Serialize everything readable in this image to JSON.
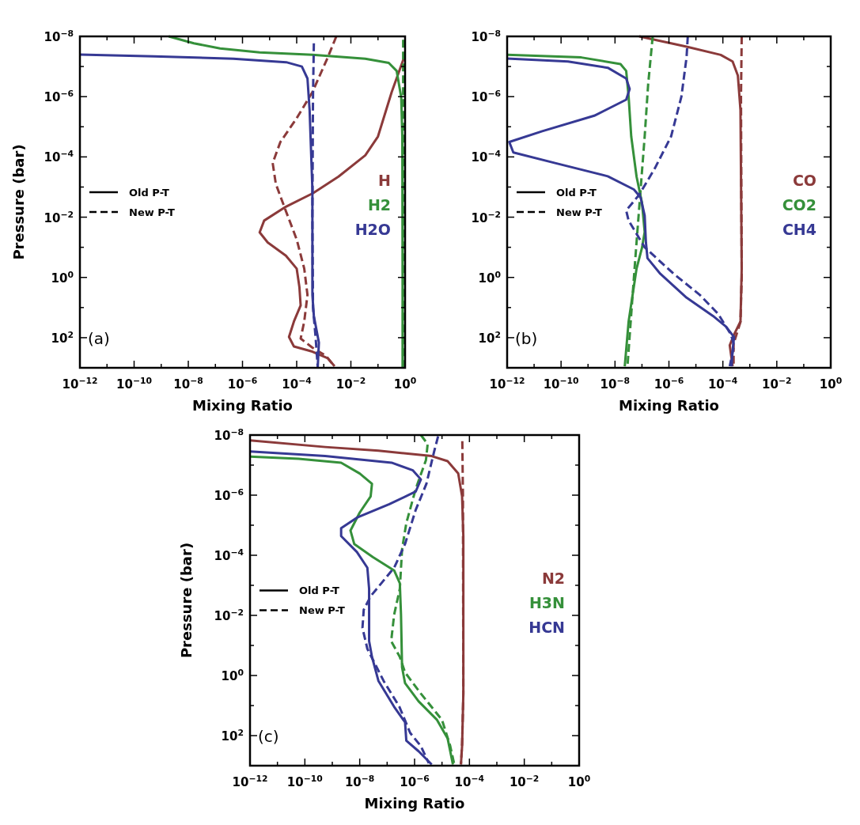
{
  "chart_data": [
    {
      "type": "line",
      "xlabel": "Mixing Ratio",
      "ylabel": "Pressure (bar)",
      "log": "xy",
      "legend": "center right",
      "annotations": [
        "Old P-T",
        "New P-T",
        "(a)"
      ],
      "xlim": [
        1e-12,
        1
      ],
      "ylim": [
        1000,
        1e-08
      ],
      "xticks": [
        {
          "value": 1e-12,
          "label": "10$^{−12}$"
        },
        {
          "value": 1e-11,
          "label": null
        },
        {
          "value": 1e-10,
          "label": "10$^{−10}$"
        },
        {
          "value": 1e-09,
          "label": null
        },
        {
          "value": 1e-08,
          "label": "10$^{−8}$"
        },
        {
          "value": 1e-07,
          "label": null
        },
        {
          "value": 1e-06,
          "label": "10$^{−6}$"
        },
        {
          "value": 1e-05,
          "label": null
        },
        {
          "value": 0.0001,
          "label": "10$^{−4}$"
        },
        {
          "value": 0.001,
          "label": null
        },
        {
          "value": 0.01,
          "label": "10$^{−2}$"
        },
        {
          "value": 0.1,
          "label": null
        },
        {
          "value": 1,
          "label": "10$^{0}$"
        }
      ],
      "yticks": [
        {
          "value": 1e-08,
          "label": "10$^{−8}$"
        },
        {
          "value": 1e-07,
          "label": null
        },
        {
          "value": 1e-06,
          "label": "10$^{−6}$"
        },
        {
          "value": 1e-05,
          "label": null
        },
        {
          "value": 0.0001,
          "label": "10$^{−4}$"
        },
        {
          "value": 0.001,
          "label": null
        },
        {
          "value": 0.01,
          "label": "10$^{−2}$"
        },
        {
          "value": 0.1,
          "label": null
        },
        {
          "value": 1,
          "label": "10$^{0}$"
        },
        {
          "value": 10,
          "label": null
        },
        {
          "value": 100,
          "label": "10$^{2}$"
        }
      ],
      "series": [
        {
          "name": "H",
          "color": "#8b3a3a",
          "line_style": "solid",
          "x": [
            0.95,
            0.32,
            0.1,
            0.034,
            0.0035,
            0.0004,
            4e-05,
            6.3e-06,
            4.3e-06,
            8.5e-06,
            4e-05,
            0.0001,
            0.000126,
            0.00014,
            7.9e-05,
            5.2e-05,
            7.9e-05,
            0.00038,
            0.0014,
            0.0025
          ],
          "values": [
            4.6e-08,
            7.1e-07,
            2.1e-05,
            8.9e-05,
            0.00045,
            0.0016,
            0.0045,
            0.013,
            0.032,
            0.069,
            0.19,
            0.51,
            2.1,
            8.5,
            29,
            95,
            195,
            290,
            480,
            890
          ]
        },
        {
          "color": "#8b3a3a",
          "line_style": "dashed",
          "x": [
            0.0029,
            0.0014,
            0.00038,
            0.0001,
            2.5e-05,
            1.3e-05,
            1.7e-05,
            4e-05,
            0.0001,
            0.00019,
            0.00025,
            0.00019,
            0.00014,
            0.00038,
            0.0012,
            0.0022
          ],
          "values": [
            1e-08,
            5e-08,
            7.1e-07,
            5.2e-06,
            3.2e-05,
            0.00016,
            0.00079,
            0.0063,
            0.055,
            0.51,
            3.8,
            29,
            107,
            214,
            400,
            790
          ]
        },
        {
          "name": "H2",
          "color": "#35903a",
          "line_style": "solid",
          "x": [
            1.9e-09,
            1.6e-08,
            1.5e-07,
            4.3e-06,
            0.00038,
            0.034,
            0.25,
            0.49,
            0.72,
            0.79,
            0.81,
            0.81
          ],
          "values": [
            1e-08,
            1.7e-08,
            2.5e-08,
            3.4e-08,
            4.1e-08,
            5.5e-08,
            7.6e-08,
            1.4e-07,
            1.05e-06,
            2.1e-05,
            1,
            1000
          ]
        },
        {
          "color": "#35903a",
          "line_style": "dashed",
          "x": [
            0.85,
            0.85,
            0.84,
            0.84
          ],
          "values": [
            1.3e-08,
            1e-06,
            1,
            1000
          ]
        },
        {
          "name": "H2O",
          "color": "#363994",
          "line_style": "solid",
          "x": [
            1e-12,
            5.5e-10,
            4.6e-07,
            4.1e-05,
            0.000155,
            0.00025,
            0.0003,
            0.00038,
            0.00038,
            0.00043,
            0.00066,
            0.0006
          ],
          "values": [
            4e-08,
            4.6e-08,
            5.5e-08,
            7.2e-08,
            1e-07,
            2.5e-07,
            2.8e-06,
            0.0012,
            3.8,
            19,
            145,
            890
          ]
        },
        {
          "color": "#363994",
          "line_style": "dashed",
          "x": [
            0.00043,
            0.0004,
            0.00038,
            0.0004,
            0.0005,
            0.0006
          ],
          "values": [
            1.7e-08,
            1e-06,
            0.01,
            10,
            100,
            1000
          ]
        }
      ]
    },
    {
      "type": "line",
      "xlabel": "Mixing Ratio",
      "log": "xy",
      "legend": "center right",
      "annotations": [
        "Old P-T",
        "New P-T",
        "(b)"
      ],
      "xlim": [
        1e-12,
        1
      ],
      "ylim": [
        1000,
        1e-08
      ],
      "xticks": [
        {
          "value": 1e-12,
          "label": "10$^{−12}$"
        },
        {
          "value": 1e-11,
          "label": null
        },
        {
          "value": 1e-10,
          "label": "10$^{−10}$"
        },
        {
          "value": 1e-09,
          "label": null
        },
        {
          "value": 1e-08,
          "label": "10$^{−8}$"
        },
        {
          "value": 1e-07,
          "label": null
        },
        {
          "value": 1e-06,
          "label": "10$^{−6}$"
        },
        {
          "value": 1e-05,
          "label": null
        },
        {
          "value": 0.0001,
          "label": "10$^{−4}$"
        },
        {
          "value": 0.001,
          "label": null
        },
        {
          "value": 0.01,
          "label": "10$^{−2}$"
        },
        {
          "value": 0.1,
          "label": null
        },
        {
          "value": 1,
          "label": "10$^{0}$"
        }
      ],
      "yticks": [
        {
          "value": 1e-08,
          "label": "10$^{−8}$"
        },
        {
          "value": 1e-07,
          "label": null
        },
        {
          "value": 1e-06,
          "label": "10$^{−6}$"
        },
        {
          "value": 1e-05,
          "label": null
        },
        {
          "value": 0.0001,
          "label": "10$^{−4}$"
        },
        {
          "value": 0.001,
          "label": null
        },
        {
          "value": 0.01,
          "label": "10$^{−2}$"
        },
        {
          "value": 0.1,
          "label": null
        },
        {
          "value": 1,
          "label": "10$^{0}$"
        },
        {
          "value": 10,
          "label": null
        },
        {
          "value": 100,
          "label": "10$^{2}$"
        }
      ],
      "series": [
        {
          "name": "CO",
          "color": "#8b3a3a",
          "line_style": "solid",
          "x": [
            7.9e-08,
            4.5e-06,
            8.3e-05,
            0.00023,
            0.00036,
            0.00045,
            0.0005,
            0.00045,
            0.00026,
            0.00018,
            0.00023
          ],
          "values": [
            1e-08,
            2.2e-08,
            4.1e-08,
            6.8e-08,
            2e-07,
            2.8e-06,
            0.51,
            29,
            79,
            178,
            890
          ]
        },
        {
          "color": "#8b3a3a",
          "line_style": "dashed",
          "x": [
            0.0005,
            0.00047,
            0.0005,
            0.00045,
            0.00025,
            0.00025
          ],
          "values": [
            1e-08,
            1e-06,
            1,
            30,
            160,
            1000
          ]
        },
        {
          "name": "CO2",
          "color": "#35903a",
          "line_style": "solid",
          "x": [
            1e-12,
            5.6e-10,
            1.6e-08,
            2.6e-08,
            3.2e-08,
            4e-08,
            6.3e-08,
            1e-07,
            1.26e-07,
            1e-07,
            6.3e-08,
            4.5e-08,
            3.2e-08,
            2.3e-08
          ],
          "values": [
            4.1e-08,
            5e-08,
            8.3e-08,
            1.4e-07,
            1e-06,
            2.1e-05,
            0.00045,
            0.0033,
            0.031,
            0.105,
            0.51,
            3.8,
            29,
            890
          ]
        },
        {
          "color": "#35903a",
          "line_style": "dashed",
          "x": [
            2.5e-07,
            1.7e-07,
            1.26e-07,
            8.9e-08,
            6.3e-08,
            4.5e-08,
            2.9e-08
          ],
          "values": [
            1e-08,
            3.8e-07,
            2.1e-05,
            0.0012,
            0.068,
            3.8,
            890
          ]
        },
        {
          "name": "CH4",
          "color": "#363994",
          "line_style": "solid",
          "x": [
            1e-12,
            1.8e-10,
            5.4e-09,
            2.6e-08,
            3.5e-08,
            2.6e-08,
            1.7e-09,
            2e-11,
            1.2e-12,
            1.7e-12,
            6e-11,
            5.4e-09,
            5e-08,
            8.9e-08,
            1.26e-07,
            1.4e-07,
            1.6e-07,
            4.8e-07,
            4.5e-06,
            4.3e-05,
            0.00013,
            0.00026,
            0.00023,
            0.00021
          ],
          "values": [
            5.4e-08,
            6.8e-08,
            1.1e-07,
            2.5e-07,
            5.6e-07,
            1.26e-06,
            4.3e-06,
            1.4e-05,
            3.2e-05,
            7.1e-05,
            0.00016,
            0.00044,
            0.0012,
            0.0022,
            0.0089,
            0.068,
            0.23,
            0.76,
            4.7,
            19,
            43,
            95,
            263,
            890
          ]
        },
        {
          "color": "#363994",
          "line_style": "dashed",
          "x": [
            5e-06,
            4.5e-06,
            2.9e-06,
            1.2e-06,
            3e-07,
            7.9e-08,
            2.6e-08,
            3.2e-08,
            1.26e-07,
            1.5e-06,
            1.4e-05,
            6.6e-05,
            0.0002,
            0.00026,
            0.00018
          ],
          "values": [
            1e-08,
            5e-08,
            1e-06,
            2.1e-05,
            0.00024,
            0.0018,
            0.006,
            0.013,
            0.1,
            0.76,
            3.8,
            16,
            79,
            178,
            890
          ]
        }
      ]
    },
    {
      "type": "line",
      "xlabel": "Mixing Ratio",
      "ylabel": "Pressure (bar)",
      "log": "xy",
      "legend": "center right",
      "annotations": [
        "Old P-T",
        "New P-T",
        "(c)"
      ],
      "xlim": [
        1e-12,
        1
      ],
      "ylim": [
        1000,
        1e-08
      ],
      "xticks": [
        {
          "value": 1e-12,
          "label": "10$^{−12}$"
        },
        {
          "value": 1e-11,
          "label": null
        },
        {
          "value": 1e-10,
          "label": "10$^{−10}$"
        },
        {
          "value": 1e-09,
          "label": null
        },
        {
          "value": 1e-08,
          "label": "10$^{−8}$"
        },
        {
          "value": 1e-07,
          "label": null
        },
        {
          "value": 1e-06,
          "label": "10$^{−6}$"
        },
        {
          "value": 1e-05,
          "label": null
        },
        {
          "value": 0.0001,
          "label": "10$^{−4}$"
        },
        {
          "value": 0.001,
          "label": null
        },
        {
          "value": 0.01,
          "label": "10$^{−2}$"
        },
        {
          "value": 0.1,
          "label": null
        },
        {
          "value": 1,
          "label": "10$^{0}$"
        }
      ],
      "yticks": [
        {
          "value": 1e-08,
          "label": "10$^{−8}$"
        },
        {
          "value": 1e-07,
          "label": null
        },
        {
          "value": 1e-06,
          "label": "10$^{−6}$"
        },
        {
          "value": 1e-05,
          "label": null
        },
        {
          "value": 0.0001,
          "label": "10$^{−4}$"
        },
        {
          "value": 0.001,
          "label": null
        },
        {
          "value": 0.01,
          "label": "10$^{−2}$"
        },
        {
          "value": 0.1,
          "label": null
        },
        {
          "value": 1,
          "label": "10$^{0}$"
        },
        {
          "value": 10,
          "label": null
        },
        {
          "value": 100,
          "label": "10$^{2}$"
        }
      ],
      "series": [
        {
          "name": "N2",
          "color": "#8b3a3a",
          "line_style": "solid",
          "x": [
            1e-12,
            5.5e-10,
            4.8e-08,
            4.2e-06,
            1.6e-05,
            3.9e-05,
            5.4e-05,
            6e-05,
            6e-05,
            5.4e-05,
            4.9e-05
          ],
          "values": [
            1.5e-08,
            2.5e-08,
            3.3e-08,
            5e-08,
            7.4e-08,
            1.9e-07,
            1.1e-06,
            2.3e-05,
            4,
            224,
            910
          ]
        },
        {
          "color": "#8b3a3a",
          "line_style": "dashed",
          "x": [
            5.5e-05,
            5.8e-05,
            6e-05,
            5.4e-05,
            4.9e-05
          ],
          "values": [
            1.6e-08,
            1e-06,
            4,
            200,
            910
          ]
        },
        {
          "name": "H3N",
          "color": "#35903a",
          "line_style": "solid",
          "x": [
            1e-12,
            5.9e-11,
            2.1e-09,
            1e-08,
            2.8e-08,
            2.5e-08,
            1e-08,
            4.6e-09,
            6.3e-09,
            3e-08,
            1.8e-07,
            2.9e-07,
            3.2e-07,
            3.5e-07,
            4.5e-07,
            1.4e-06,
            6.6e-06,
            1.6e-05,
            2.5e-05
          ],
          "values": [
            5.2e-08,
            6.2e-08,
            8.3e-08,
            1.9e-07,
            4.2e-07,
            1.1e-06,
            3.8e-06,
            1.5e-05,
            4.2e-05,
            0.000115,
            0.00032,
            0.00085,
            0.0095,
            0.54,
            1.8,
            7.2,
            30,
            123,
            910
          ]
        },
        {
          "color": "#35903a",
          "line_style": "dashed",
          "x": [
            1.7e-06,
            3e-06,
            2.6e-06,
            1.1e-06,
            5e-07,
            3.5e-07,
            2.9e-07,
            1.8e-07,
            1.4e-07,
            2.9e-07,
            4.5e-07,
            1.7e-06,
            1e-05,
            2e-05,
            2.8e-05
          ],
          "values": [
            1e-08,
            2e-08,
            6.8e-08,
            6.2e-07,
            8.5e-06,
            6.3e-05,
            0.0013,
            0.0095,
            0.072,
            0.24,
            0.79,
            4,
            30,
            224,
            910
          ]
        },
        {
          "name": "HCN",
          "color": "#363994",
          "line_style": "solid",
          "x": [
            1e-12,
            5.5e-10,
            1.45e-07,
            8.7e-07,
            1.7e-06,
            1.1e-06,
            1.2e-07,
            7.9e-09,
            2.1e-09,
            2.1e-09,
            7.9e-09,
            1.9e-08,
            2.2e-08,
            2.2e-08,
            2.8e-08,
            4.8e-08,
            1.8e-07,
            4.5e-07,
            5e-07,
            1.4e-06,
            4.2e-06
          ],
          "values": [
            3.5e-08,
            5e-08,
            8.3e-08,
            1.5e-07,
            3e-07,
            7.6e-07,
            2e-06,
            5.6e-06,
            1.26e-05,
            2.3e-05,
            7.8e-05,
            0.00026,
            0.0013,
            0.072,
            0.24,
            1.5,
            11,
            36,
            148,
            331,
            910
          ]
        },
        {
          "color": "#363994",
          "line_style": "dashed",
          "x": [
            7.2e-06,
            5.1e-06,
            2.7e-06,
            1.1e-06,
            4.5e-07,
            1.8e-07,
            2.5e-08,
            1.4e-08,
            1.26e-08,
            1.9e-08,
            7.4e-08,
            2.8e-07,
            6.9e-07,
            1.7e-06,
            3.3e-06
          ],
          "values": [
            1.1e-08,
            3.7e-08,
            4.2e-07,
            3.1e-06,
            4.2e-05,
            0.00026,
            0.0023,
            0.0065,
            0.026,
            0.13,
            1.5,
            11,
            81,
            224,
            830
          ]
        }
      ]
    }
  ]
}
